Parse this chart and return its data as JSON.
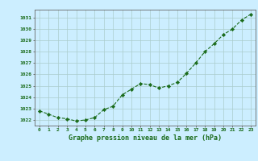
{
  "x": [
    0,
    1,
    2,
    3,
    4,
    5,
    6,
    7,
    8,
    9,
    10,
    11,
    12,
    13,
    14,
    15,
    16,
    17,
    18,
    19,
    20,
    21,
    22,
    23
  ],
  "y": [
    1022.8,
    1022.5,
    1022.2,
    1022.1,
    1021.9,
    1022.0,
    1022.2,
    1022.9,
    1023.2,
    1024.2,
    1024.7,
    1025.2,
    1025.1,
    1024.8,
    1025.0,
    1025.3,
    1026.1,
    1027.0,
    1028.0,
    1028.7,
    1029.5,
    1030.0,
    1030.8,
    1031.3
  ],
  "line_color": "#1a6b1a",
  "marker": "D",
  "marker_size": 2.2,
  "bg_color": "#cceeff",
  "grid_color": "#aacccc",
  "xlabel": "Graphe pression niveau de la mer (hPa)",
  "xlabel_color": "#1a6b1a",
  "tick_color": "#1a6b1a",
  "ylim": [
    1021.5,
    1031.7
  ],
  "yticks": [
    1022,
    1023,
    1024,
    1025,
    1026,
    1027,
    1028,
    1029,
    1030,
    1031
  ],
  "xticks": [
    0,
    1,
    2,
    3,
    4,
    5,
    6,
    7,
    8,
    9,
    10,
    11,
    12,
    13,
    14,
    15,
    16,
    17,
    18,
    19,
    20,
    21,
    22,
    23
  ],
  "spine_color": "#666666",
  "line_width": 0.8
}
